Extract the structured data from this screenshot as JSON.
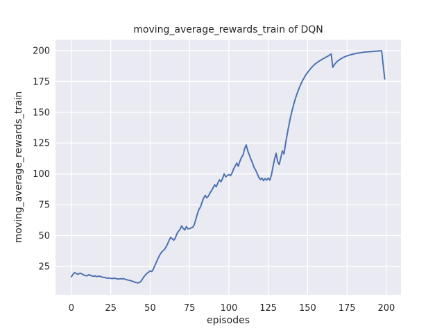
{
  "chart_data": {
    "type": "line",
    "title": "moving_average_rewards_train of DQN",
    "xlabel": "episodes",
    "ylabel": "moving_average_rewards_train",
    "xticks": [
      0,
      25,
      50,
      75,
      100,
      125,
      150,
      175,
      200
    ],
    "yticks": [
      25,
      50,
      75,
      100,
      125,
      150,
      175,
      200
    ],
    "xlim": [
      -10.1,
      209.3
    ],
    "ylim": [
      1.9,
      208.7
    ],
    "grid": true,
    "legend": "none",
    "style": "seaborn-darkgrid",
    "background_color": "#eaeaf2",
    "gridline_color": "#ffffff",
    "line_color": "#4c72b0",
    "series": [
      {
        "name": "moving_average_rewards_train",
        "x_start": 0,
        "x_step": 1,
        "values": [
          16.6,
          18.5,
          20.0,
          19.3,
          18.6,
          19.2,
          19.4,
          18.6,
          17.9,
          17.5,
          17.3,
          18.2,
          17.8,
          17.2,
          17.0,
          17.3,
          16.7,
          16.9,
          17.1,
          16.5,
          16.2,
          16.0,
          15.7,
          15.4,
          15.6,
          15.3,
          15.0,
          15.5,
          15.2,
          14.9,
          14.7,
          15.0,
          14.8,
          15.1,
          14.6,
          14.2,
          13.9,
          13.6,
          13.2,
          12.8,
          12.3,
          11.9,
          11.6,
          11.8,
          12.6,
          14.5,
          16.5,
          18.0,
          19.3,
          20.2,
          21.3,
          20.8,
          22.8,
          25.6,
          28.5,
          31.5,
          34.0,
          36.0,
          37.5,
          38.5,
          40.5,
          43.0,
          46.0,
          48.5,
          47.5,
          46.2,
          48.0,
          51.5,
          53.5,
          55.0,
          57.8,
          55.8,
          54.5,
          57.2,
          55.4,
          55.6,
          56.2,
          56.6,
          58.8,
          63.0,
          67.5,
          71.2,
          73.3,
          77.0,
          80.5,
          82.6,
          80.6,
          82.0,
          84.5,
          86.5,
          88.8,
          91.2,
          89.6,
          92.5,
          95.2,
          93.6,
          96.2,
          100.0,
          97.6,
          98.7,
          99.4,
          98.6,
          100.6,
          104.0,
          106.3,
          108.8,
          106.2,
          110.2,
          113.5,
          115.2,
          120.5,
          123.5,
          118.8,
          115.4,
          111.8,
          108.8,
          105.2,
          103.0,
          100.2,
          97.3,
          95.4,
          96.6,
          94.6,
          96.2,
          95.0,
          96.6,
          94.9,
          99.0,
          105.8,
          111.8,
          116.8,
          109.8,
          107.6,
          113.2,
          118.8,
          116.2,
          124.5,
          132.0,
          139.0,
          145.0,
          150.5,
          155.5,
          160.0,
          164.0,
          167.5,
          170.8,
          173.7,
          176.2,
          178.5,
          180.5,
          182.3,
          184.0,
          185.5,
          186.9,
          188.2,
          189.3,
          190.3,
          191.2,
          192.0,
          192.8,
          193.5,
          194.2,
          194.9,
          195.6,
          196.5,
          197.3,
          186.5,
          188.6,
          190.2,
          191.4,
          192.4,
          193.3,
          194.0,
          194.7,
          195.2,
          195.7,
          196.1,
          196.5,
          196.9,
          197.2,
          197.5,
          197.8,
          198.0,
          198.2,
          198.4,
          198.6,
          198.8,
          198.9,
          199.0,
          199.1,
          199.2,
          199.3,
          199.4,
          199.5,
          199.6,
          199.7,
          199.8,
          199.8,
          188.0,
          177.0
        ]
      }
    ]
  }
}
